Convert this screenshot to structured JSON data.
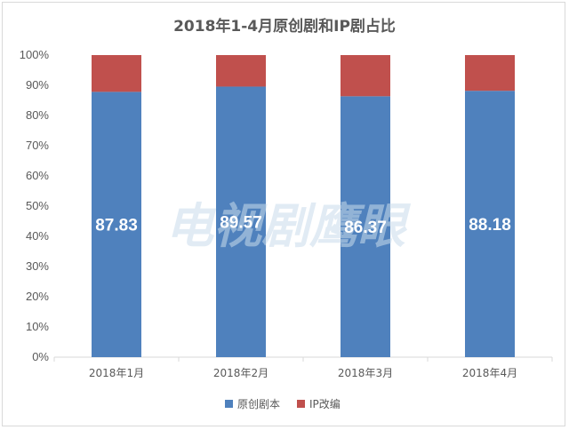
{
  "chart_data": {
    "type": "bar",
    "stacked": true,
    "title": "2018年1-4月原创剧和IP剧占比",
    "categories": [
      "2018年1月",
      "2018年2月",
      "2018年3月",
      "2018年4月"
    ],
    "series": [
      {
        "name": "原创剧本",
        "values": [
          87.83,
          89.57,
          86.37,
          88.18
        ],
        "color": "#4f81bd",
        "show_labels": true
      },
      {
        "name": "IP改编",
        "values": [
          12.17,
          10.43,
          13.63,
          11.82
        ],
        "color": "#c0504d",
        "show_labels": false
      }
    ],
    "ylim": [
      0,
      100
    ],
    "y_ticks": [
      "0%",
      "10%",
      "20%",
      "30%",
      "40%",
      "50%",
      "60%",
      "70%",
      "80%",
      "90%",
      "100%"
    ],
    "xlabel": "",
    "ylabel": "",
    "grid": false,
    "legend_position": "bottom"
  },
  "watermark": "电视剧鹰眼"
}
